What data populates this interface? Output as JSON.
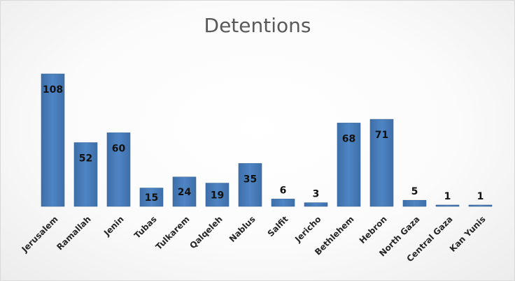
{
  "chart_data": {
    "type": "bar",
    "title": "Detentions",
    "xlabel": "",
    "ylabel": "",
    "categories": [
      "Jerusalem",
      "Ramallah",
      "Jenin",
      "Tubas",
      "Tulkarem",
      "Qalqeleh",
      "Nablus",
      "Salfit",
      "Jericho",
      "Bethlehem",
      "Hebron",
      "North Gaza",
      "Central Gaza",
      "Kan Yunis"
    ],
    "values": [
      108,
      52,
      60,
      15,
      24,
      19,
      35,
      6,
      3,
      68,
      71,
      5,
      1,
      1
    ],
    "ylim": [
      0,
      108
    ],
    "grid": false,
    "legend": "none",
    "bar_color": "#4a7ebb",
    "data_labels": true
  }
}
